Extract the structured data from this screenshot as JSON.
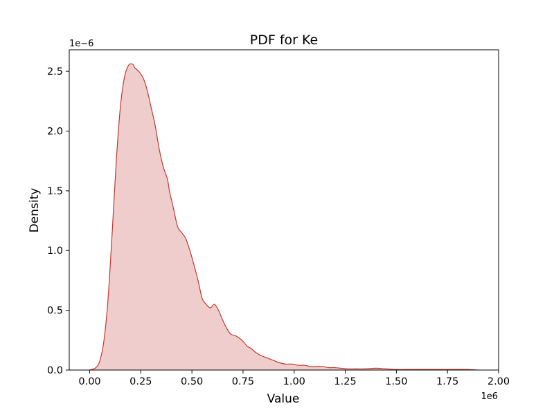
{
  "chart_data": {
    "type": "area",
    "title": "PDF for Ke",
    "xlabel": "Value",
    "ylabel": "Density",
    "x_offset_label": "1e6",
    "y_offset_label": "1e−6",
    "xlim": [
      -0.1,
      2.0
    ],
    "ylim": [
      0,
      2.68
    ],
    "x_ticks": [
      0.0,
      0.25,
      0.5,
      0.75,
      1.0,
      1.25,
      1.5,
      1.75,
      2.0
    ],
    "x_tick_labels": [
      "0.00",
      "0.25",
      "0.50",
      "0.75",
      "1.00",
      "1.25",
      "1.50",
      "1.75",
      "2.00"
    ],
    "y_ticks": [
      0.0,
      0.5,
      1.0,
      1.5,
      2.0,
      2.5
    ],
    "y_tick_labels": [
      "0.0",
      "0.5",
      "1.0",
      "1.5",
      "2.0",
      "2.5"
    ],
    "grid": false,
    "line_color": "#c0392b",
    "fill_color": "#efcdcd",
    "series": [
      {
        "x": [
          0.0,
          0.03,
          0.05,
          0.07,
          0.09,
          0.11,
          0.13,
          0.15,
          0.17,
          0.19,
          0.21,
          0.22,
          0.24,
          0.26,
          0.28,
          0.3,
          0.32,
          0.34,
          0.36,
          0.38,
          0.39,
          0.41,
          0.43,
          0.45,
          0.47,
          0.49,
          0.51,
          0.53,
          0.55,
          0.57,
          0.59,
          0.61,
          0.63,
          0.65,
          0.67,
          0.69,
          0.71,
          0.73,
          0.75,
          0.77,
          0.79,
          0.81,
          0.84,
          0.87,
          0.9,
          0.93,
          0.96,
          0.99,
          1.02,
          1.05,
          1.08,
          1.11,
          1.14,
          1.17,
          1.2,
          1.23,
          1.26,
          1.3,
          1.35,
          1.4,
          1.45,
          1.5,
          1.55,
          1.6,
          1.65,
          1.7,
          1.75,
          1.8,
          1.85,
          1.9
        ],
        "y": [
          0.0,
          0.02,
          0.08,
          0.25,
          0.6,
          1.15,
          1.75,
          2.2,
          2.45,
          2.55,
          2.56,
          2.53,
          2.5,
          2.45,
          2.35,
          2.2,
          2.05,
          1.85,
          1.7,
          1.6,
          1.5,
          1.35,
          1.2,
          1.15,
          1.1,
          1.0,
          0.88,
          0.75,
          0.6,
          0.55,
          0.52,
          0.55,
          0.5,
          0.42,
          0.35,
          0.3,
          0.29,
          0.27,
          0.24,
          0.2,
          0.18,
          0.15,
          0.12,
          0.1,
          0.08,
          0.06,
          0.05,
          0.05,
          0.04,
          0.04,
          0.03,
          0.03,
          0.03,
          0.02,
          0.02,
          0.015,
          0.01,
          0.01,
          0.01,
          0.015,
          0.01,
          0.005,
          0.005,
          0.005,
          0.005,
          0.005,
          0.005,
          0.005,
          0.005,
          0.0
        ]
      }
    ]
  }
}
